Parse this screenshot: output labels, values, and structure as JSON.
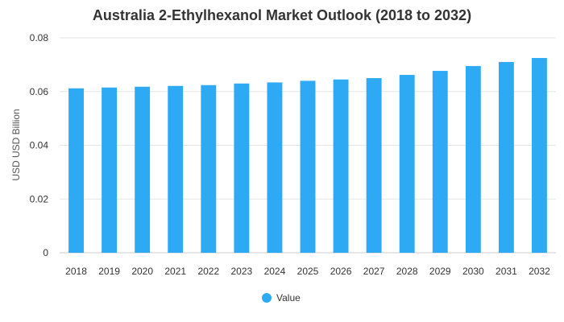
{
  "chart_data": {
    "type": "bar",
    "title": "Australia 2-Ethylhexanol Market Outlook (2018 to 2032)",
    "xlabel": "",
    "ylabel": "USD USD Billion",
    "ylim": [
      0,
      0.08
    ],
    "yticks": [
      0,
      0.02,
      0.04,
      0.06,
      0.08
    ],
    "ytick_labels": [
      "0",
      "0.02",
      "0.04",
      "0.06",
      "0.08"
    ],
    "categories": [
      "2018",
      "2019",
      "2020",
      "2021",
      "2022",
      "2023",
      "2024",
      "2025",
      "2026",
      "2027",
      "2028",
      "2029",
      "2030",
      "2031",
      "2032"
    ],
    "series": [
      {
        "name": "Value",
        "color": "#2eaaf5",
        "values": [
          0.0612,
          0.0615,
          0.0618,
          0.0621,
          0.0624,
          0.063,
          0.0634,
          0.064,
          0.0645,
          0.065,
          0.0662,
          0.0677,
          0.0695,
          0.071,
          0.0725
        ]
      }
    ],
    "grid": true,
    "legend": "bottom"
  }
}
